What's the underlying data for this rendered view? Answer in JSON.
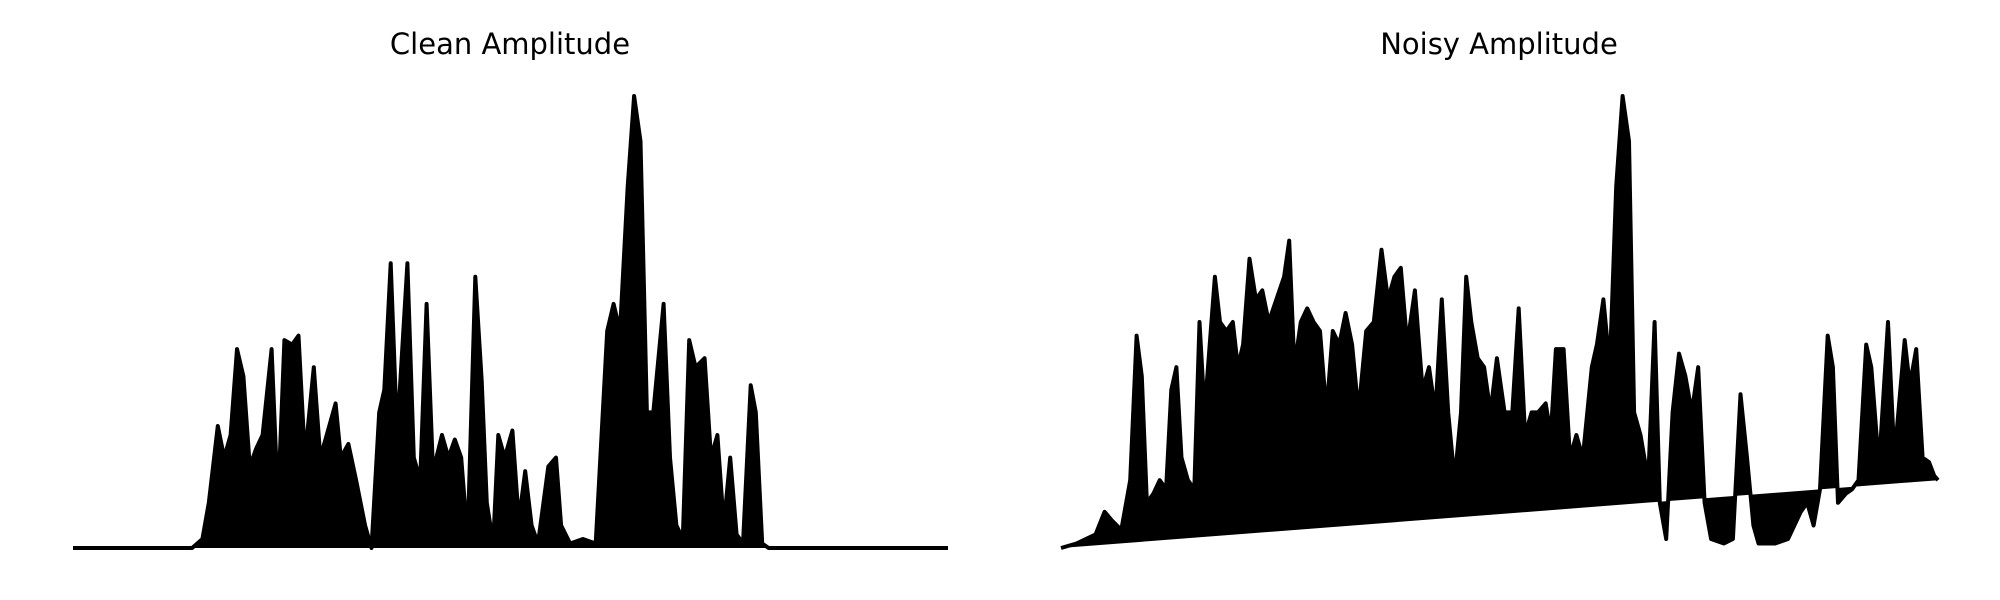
{
  "chart_data": [
    {
      "type": "line",
      "title": "Clean Amplitude",
      "color": "#000000",
      "fill": true,
      "xlim": [
        0,
        683
      ],
      "ylim": [
        0,
        1
      ],
      "x": [
        0,
        43,
        93,
        101,
        106,
        113,
        118,
        123,
        128,
        133,
        138,
        143,
        148,
        155,
        160,
        165,
        171,
        176,
        181,
        188,
        193,
        198,
        205,
        209,
        215,
        221,
        228,
        233,
        239,
        243,
        248,
        253,
        261,
        266,
        271,
        276,
        281,
        288,
        293,
        298,
        303,
        308,
        314,
        319,
        323,
        328,
        332,
        337,
        343,
        348,
        353,
        358,
        363,
        371,
        377,
        381,
        388,
        398,
        408,
        417,
        422,
        427,
        433,
        438,
        443,
        448,
        453,
        461,
        466,
        471,
        476,
        481,
        486,
        493,
        498,
        503,
        508,
        513,
        518,
        523,
        529,
        533,
        538,
        543,
        683
      ],
      "values": [
        0,
        0,
        0,
        0.02,
        0.1,
        0.27,
        0.2,
        0.25,
        0.44,
        0.38,
        0.18,
        0.22,
        0.25,
        0.44,
        0.1,
        0.46,
        0.45,
        0.47,
        0.2,
        0.4,
        0.2,
        0.25,
        0.32,
        0.2,
        0.23,
        0.15,
        0.05,
        0,
        0.3,
        0.35,
        0.63,
        0.25,
        0.63,
        0.2,
        0.15,
        0.54,
        0.17,
        0.25,
        0.2,
        0.24,
        0.2,
        0.02,
        0.6,
        0.37,
        0.1,
        0.01,
        0.25,
        0.2,
        0.26,
        0.06,
        0.17,
        0.05,
        0.01,
        0.18,
        0.2,
        0.05,
        0.01,
        0.02,
        0.01,
        0.48,
        0.54,
        0.48,
        0.8,
        1.0,
        0.9,
        0.3,
        0.3,
        0.54,
        0.2,
        0.05,
        0.02,
        0.46,
        0.4,
        0.42,
        0.2,
        0.25,
        0.05,
        0.2,
        0.03,
        0.01,
        0.36,
        0.3,
        0.01,
        0,
        0
      ]
    },
    {
      "type": "line",
      "title": "Noisy Amplitude",
      "color": "#000000",
      "fill": true,
      "xlim": [
        0,
        684
      ],
      "ylim": [
        0,
        1
      ],
      "x": [
        0,
        12,
        27,
        34,
        40,
        47,
        54,
        59,
        63,
        67,
        72,
        77,
        82,
        86,
        90,
        94,
        99,
        104,
        108,
        112,
        116,
        120,
        124,
        129,
        134,
        138,
        142,
        147,
        152,
        157,
        162,
        168,
        174,
        178,
        182,
        187,
        192,
        197,
        202,
        207,
        212,
        217,
        222,
        227,
        232,
        238,
        244,
        250,
        255,
        260,
        265,
        270,
        276,
        282,
        287,
        292,
        297,
        302,
        307,
        312,
        316,
        320,
        325,
        330,
        335,
        340,
        346,
        352,
        357,
        362,
        367,
        372,
        378,
        382,
        386,
        392,
        397,
        402,
        407,
        414,
        418,
        423,
        428,
        433,
        438,
        443,
        447,
        452,
        458,
        463,
        467,
        472,
        477,
        482,
        487,
        492,
        497,
        502,
        507,
        517,
        524,
        530,
        535,
        540,
        544,
        557,
        567,
        572,
        577,
        582,
        587,
        592,
        598,
        602,
        606,
        612,
        617,
        622,
        628,
        632,
        638,
        645,
        650,
        658,
        662,
        667,
        672,
        677,
        681,
        684
      ],
      "values": [
        0,
        0.01,
        0.03,
        0.08,
        0.06,
        0.04,
        0.15,
        0.47,
        0.38,
        0.1,
        0.12,
        0.15,
        0.13,
        0.35,
        0.4,
        0.2,
        0.15,
        0.13,
        0.5,
        0.3,
        0.45,
        0.6,
        0.5,
        0.48,
        0.5,
        0.4,
        0.45,
        0.64,
        0.55,
        0.57,
        0.5,
        0.55,
        0.6,
        0.68,
        0.4,
        0.5,
        0.53,
        0.5,
        0.48,
        0.3,
        0.48,
        0.45,
        0.52,
        0.45,
        0.3,
        0.48,
        0.5,
        0.66,
        0.55,
        0.6,
        0.62,
        0.45,
        0.57,
        0.35,
        0.4,
        0.3,
        0.55,
        0.3,
        0.15,
        0.3,
        0.6,
        0.5,
        0.42,
        0.4,
        0.3,
        0.42,
        0.3,
        0.3,
        0.53,
        0.25,
        0.3,
        0.3,
        0.32,
        0.25,
        0.44,
        0.44,
        0.2,
        0.25,
        0.2,
        0.4,
        0.45,
        0.55,
        0.4,
        0.8,
        1.0,
        0.9,
        0.3,
        0.25,
        0.15,
        0.5,
        0.1,
        0.02,
        0.3,
        0.43,
        0.38,
        0.3,
        0.4,
        0.1,
        0.02,
        0.01,
        0.02,
        0.34,
        0.2,
        0.05,
        0.01,
        0.01,
        0.02,
        0.05,
        0.08,
        0.1,
        0.05,
        0.13,
        0.47,
        0.4,
        0.1,
        0.12,
        0.13,
        0.15,
        0.45,
        0.4,
        0.18,
        0.5,
        0.2,
        0.46,
        0.36,
        0.44,
        0.2,
        0.19,
        0.16,
        0.15
      ]
    }
  ]
}
